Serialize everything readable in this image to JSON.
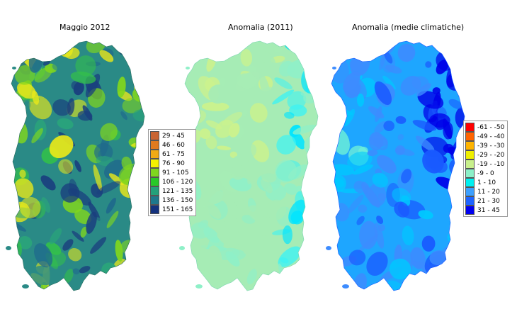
{
  "panels": [
    {
      "title": "Maggio 2012",
      "base_color": "#2a8a86",
      "palette": [
        "#1a3f7e",
        "#1f6a8c",
        "#2a8a86",
        "#2aa57a",
        "#33c04a",
        "#7fd61e",
        "#e8e81a"
      ]
    },
    {
      "title": "Anomalia (2011)",
      "base_color": "#a6ecb5",
      "palette": [
        "#ccf28c",
        "#a6ecb5",
        "#8ff0c8",
        "#40f2f2",
        "#00e4ff"
      ]
    },
    {
      "title": "Anomalia (medie climatiche)",
      "base_color": "#1ea6ff",
      "palette": [
        "#0000e8",
        "#1a5aff",
        "#3d8cff",
        "#00c8ff",
        "#6ef0d8",
        "#d4ee6a"
      ]
    }
  ],
  "legend_precipitation": {
    "items": [
      {
        "label": "29 - 45",
        "color": "#c86432"
      },
      {
        "label": "46 - 60",
        "color": "#e07a1e"
      },
      {
        "label": "61 - 75",
        "color": "#f0aa14"
      },
      {
        "label": "76 - 90",
        "color": "#f5f000"
      },
      {
        "label": "91 - 105",
        "color": "#7fd61e"
      },
      {
        "label": "106 - 120",
        "color": "#28c828"
      },
      {
        "label": "121 - 135",
        "color": "#23a07a"
      },
      {
        "label": "136 - 150",
        "color": "#1e788c"
      },
      {
        "label": "151 - 165",
        "color": "#14327e"
      }
    ]
  },
  "legend_anomaly": {
    "items": [
      {
        "label": "-61 - -50",
        "color": "#ff0000"
      },
      {
        "label": "-49 - -40",
        "color": "#ff6400"
      },
      {
        "label": "-39 - -30",
        "color": "#ffb400"
      },
      {
        "label": "-29 - -20",
        "color": "#f0f000"
      },
      {
        "label": "-19 - -10",
        "color": "#c8f08c"
      },
      {
        "label": "-9 - 0",
        "color": "#8cf0c8"
      },
      {
        "label": "1 - 10",
        "color": "#00f0f0"
      },
      {
        "label": "11 - 20",
        "color": "#3ca0ff"
      },
      {
        "label": "21 - 30",
        "color": "#1e64ff"
      },
      {
        "label": "31 - 45",
        "color": "#0000f0"
      }
    ]
  }
}
